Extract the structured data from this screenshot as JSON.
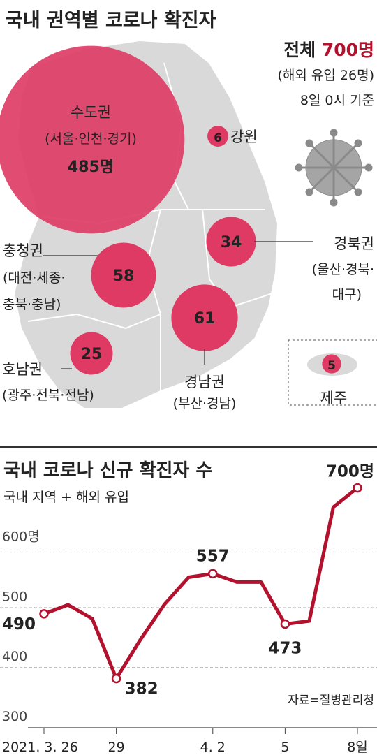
{
  "chart_data": [
    {
      "type": "bubble_map",
      "title": "국내 권역별 코로나 확진자",
      "total_label": "전체",
      "total": "700명",
      "notes": [
        "(해외 유입 26명)",
        "8일 0시 기준"
      ],
      "categories": [
        "수도권",
        "강원",
        "경북권",
        "충청권",
        "경남권",
        "호남권",
        "제주"
      ],
      "details": [
        [
          "(서울·인천·경기)"
        ],
        [],
        [
          "(울산·경북·",
          "대구)"
        ],
        [
          "(대전·세종·",
          "충북·충남)"
        ],
        [
          "(부산·경남)"
        ],
        [
          "(광주·전북·전남)"
        ],
        []
      ],
      "values": [
        485,
        6,
        34,
        58,
        61,
        25,
        5
      ],
      "value_labels": [
        "485명",
        "6",
        "34",
        "58",
        "61",
        "25",
        "5"
      ],
      "color": "#de3a63"
    },
    {
      "type": "line",
      "title": "국내 코로나 신규 확진자 수",
      "subtitle": "국내 지역 + 해외 유입",
      "source": "자료=질병관리청",
      "categories": [
        "2021. 3. 26",
        null,
        null,
        "29",
        null,
        null,
        null,
        "4. 2",
        null,
        null,
        "5",
        null,
        null,
        "8일"
      ],
      "series": [
        {
          "name": "신규 확진자",
          "color": "#b3122e",
          "values": [
            490,
            505,
            482,
            382,
            447,
            506,
            551,
            557,
            543,
            543,
            473,
            478,
            668,
            700
          ],
          "value_labels": [
            "490",
            null,
            null,
            "382",
            null,
            null,
            null,
            "557",
            null,
            null,
            "473",
            null,
            null,
            "700명"
          ]
        }
      ],
      "ylim": [
        300,
        710
      ],
      "yticks": [
        300,
        400,
        500,
        {
          "value": 600,
          "label": "600명"
        }
      ],
      "grid": true
    }
  ]
}
